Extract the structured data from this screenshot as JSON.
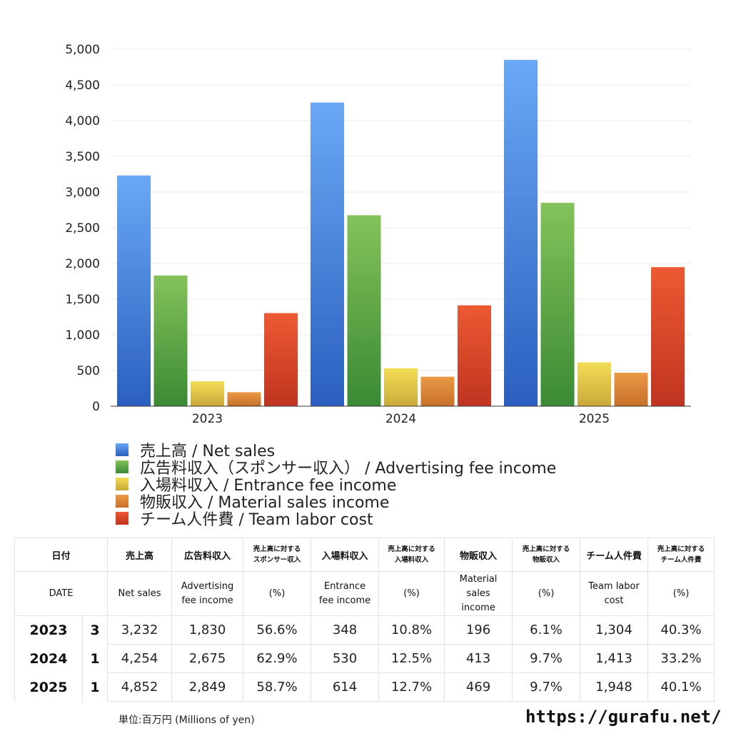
{
  "chart_data": {
    "type": "bar",
    "categories": [
      "2023",
      "2024",
      "2025"
    ],
    "ylim": [
      0,
      5000
    ],
    "yticks": [
      "0",
      "500",
      "1,000",
      "1,500",
      "2,000",
      "2,500",
      "3,000",
      "3,500",
      "4,000",
      "4,500",
      "5,000"
    ],
    "grid": true,
    "legend_position": "bottom",
    "series": [
      {
        "name": "売上高 / Net sales",
        "values": [
          3232,
          4254,
          4852
        ],
        "color": [
          "#6aa8f5",
          "#2a5fbf"
        ]
      },
      {
        "name": "広告料収入（スポンサー収入） / Advertising fee income",
        "values": [
          1830,
          2675,
          2849
        ],
        "color": [
          "#84c25a",
          "#3a8a34"
        ]
      },
      {
        "name": "入場料収入 / Entrance fee income",
        "values": [
          348,
          530,
          614
        ],
        "color": [
          "#f3dc55",
          "#c9a93a"
        ]
      },
      {
        "name": "物販収入 / Material sales income",
        "values": [
          196,
          413,
          469
        ],
        "color": [
          "#eb9a45",
          "#c66f2a"
        ]
      },
      {
        "name": "チーム人件費 / Team labor cost",
        "values": [
          1304,
          1413,
          1948
        ],
        "color": [
          "#ec5a32",
          "#bf3420"
        ]
      }
    ]
  },
  "table": {
    "header_jp": [
      "日付",
      "売上高",
      "広告料収入",
      "売上高に対する\nスポンサー収入",
      "入場料収入",
      "売上高に対する\n入場料収入",
      "物販収入",
      "売上高に対する\n物販収入",
      "チーム人件費",
      "売上高に対する\nチーム人件費"
    ],
    "header_en": [
      "DATE",
      "Net sales",
      "Advertising fee income",
      "(%)",
      "Entrance fee income",
      "(%)",
      "Material sales income",
      "(%)",
      "Team labor cost",
      "(%)"
    ],
    "rows": [
      {
        "year": "2023",
        "month": "3",
        "cells": [
          "3,232",
          "1,830",
          "56.6%",
          "348",
          "10.8%",
          "196",
          "6.1%",
          "1,304",
          "40.3%"
        ]
      },
      {
        "year": "2024",
        "month": "1",
        "cells": [
          "4,254",
          "2,675",
          "62.9%",
          "530",
          "12.5%",
          "413",
          "9.7%",
          "1,413",
          "33.2%"
        ]
      },
      {
        "year": "2025",
        "month": "1",
        "cells": [
          "4,852",
          "2,849",
          "58.7%",
          "614",
          "12.7%",
          "469",
          "9.7%",
          "1,948",
          "40.1%"
        ]
      }
    ]
  },
  "unit": "単位:百万円 (Millions of yen)",
  "site_url": "https://gurafu.net/"
}
